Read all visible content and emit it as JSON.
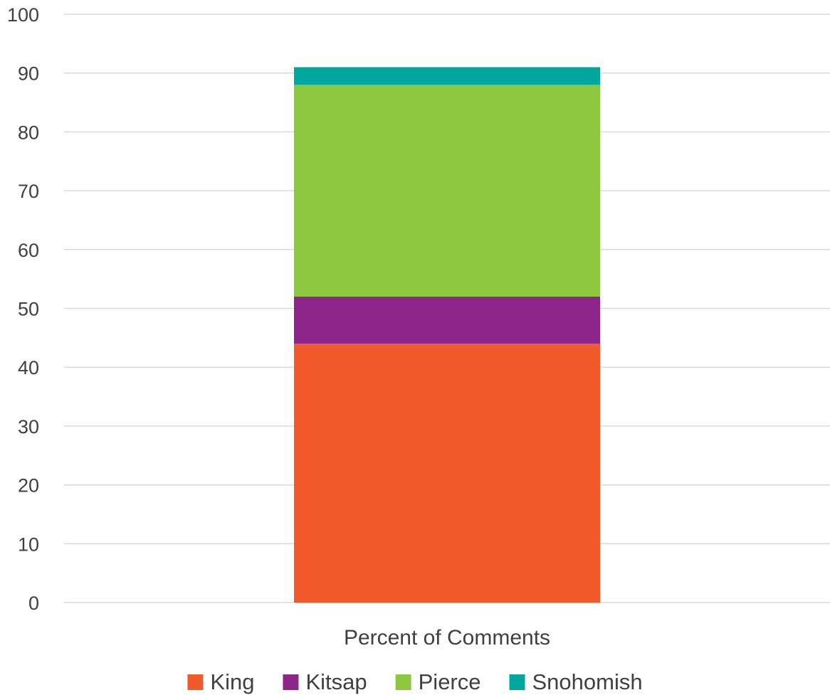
{
  "chart_data": {
    "type": "bar",
    "stacked": true,
    "categories": [
      "Percent of Comments"
    ],
    "series": [
      {
        "name": "King",
        "values": [
          44
        ],
        "color": "#f15a2b"
      },
      {
        "name": "Kitsap",
        "values": [
          8
        ],
        "color": "#8e258b"
      },
      {
        "name": "Pierce",
        "values": [
          36
        ],
        "color": "#8dc63f"
      },
      {
        "name": "Snohomish",
        "values": [
          3
        ],
        "color": "#00a79d"
      }
    ],
    "yticks": [
      "0",
      "10",
      "20",
      "30",
      "40",
      "50",
      "60",
      "70",
      "80",
      "90",
      "100"
    ],
    "ylim": [
      0,
      100
    ],
    "grid": true,
    "legend_position": "bottom",
    "title": "",
    "xlabel": "",
    "ylabel": ""
  }
}
